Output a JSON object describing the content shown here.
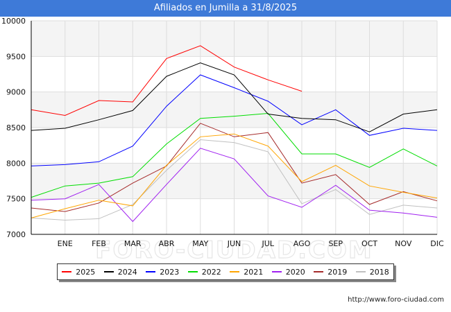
{
  "title": "Afiliados en Jumilla a 31/8/2025",
  "source": "http://www.foro-ciudad.com",
  "watermark": "FORO-CIUDAD.COM",
  "chart_data": {
    "type": "line",
    "title": "Afiliados en Jumilla a 31/8/2025",
    "xlabel": "",
    "ylabel": "",
    "categories": [
      "",
      "ENE",
      "FEB",
      "MAR",
      "ABR",
      "MAY",
      "JUN",
      "JUL",
      "AGO",
      "SEP",
      "OCT",
      "NOV",
      "DIC"
    ],
    "ylim": [
      7000,
      10000
    ],
    "yticks": [
      7000,
      7500,
      8000,
      8500,
      9000,
      9500,
      10000
    ],
    "grid": true,
    "legend_position": "bottom",
    "series": [
      {
        "name": "2025",
        "color": "#ff0000",
        "values": [
          8750,
          8670,
          8880,
          8860,
          9470,
          9650,
          9350,
          9170,
          9010,
          null,
          null,
          null,
          null
        ]
      },
      {
        "name": "2024",
        "color": "#000000",
        "values": [
          8460,
          8490,
          8610,
          8740,
          9220,
          9410,
          9240,
          8690,
          8630,
          8610,
          8440,
          8690,
          8750
        ]
      },
      {
        "name": "2023",
        "color": "#0000ff",
        "values": [
          7960,
          7980,
          8020,
          8240,
          8800,
          9240,
          9060,
          8870,
          8540,
          8750,
          8390,
          8490,
          8460
        ]
      },
      {
        "name": "2022",
        "color": "#00dd00",
        "values": [
          7520,
          7680,
          7720,
          7810,
          8270,
          8630,
          8660,
          8700,
          8130,
          8130,
          7940,
          8200,
          7960
        ]
      },
      {
        "name": "2021",
        "color": "#ffa500",
        "values": [
          7230,
          7360,
          7480,
          7400,
          7970,
          8370,
          8410,
          8240,
          7740,
          7970,
          7680,
          7590,
          7510
        ]
      },
      {
        "name": "2020",
        "color": "#a020f0",
        "values": [
          7480,
          7500,
          7700,
          7180,
          7700,
          8210,
          8060,
          7540,
          7380,
          7690,
          7340,
          7300,
          7240
        ]
      },
      {
        "name": "2019",
        "color": "#a52a2a",
        "values": [
          7370,
          7320,
          7440,
          7720,
          7960,
          8560,
          8370,
          8430,
          7720,
          7840,
          7420,
          7600,
          7470
        ]
      },
      {
        "name": "2018",
        "color": "#c0c0c0",
        "values": [
          7230,
          7200,
          7220,
          7420,
          7900,
          8330,
          8290,
          8160,
          7430,
          7630,
          7280,
          7410,
          7370
        ]
      }
    ]
  }
}
